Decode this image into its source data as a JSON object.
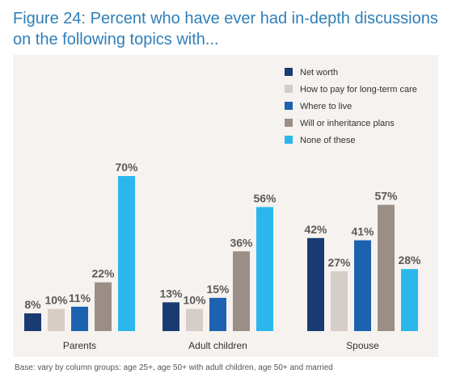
{
  "title_line1": "Figure 24: Percent who have ever had in-depth discussions",
  "title_line2": "on the following topics with...",
  "footnote": "Base: vary by column groups: age 25+, age 50+ with adult children, age 50+ and married",
  "chart_data": {
    "type": "bar",
    "categories": [
      "Parents",
      "Adult children",
      "Spouse"
    ],
    "series": [
      {
        "name": "Net worth",
        "color": "#1a3a72",
        "values": [
          8,
          13,
          42
        ]
      },
      {
        "name": "How to pay for long-term care",
        "color": "#d6cdc6",
        "values": [
          10,
          10,
          27
        ]
      },
      {
        "name": "Where to live",
        "color": "#1c62b0",
        "values": [
          11,
          15,
          41
        ]
      },
      {
        "name": "Will or inheritance plans",
        "color": "#9b8e86",
        "values": [
          22,
          36,
          57
        ]
      },
      {
        "name": "None of these",
        "color": "#2bb7ec",
        "values": [
          70,
          56,
          28
        ]
      }
    ],
    "value_suffix": "%",
    "legend": "top-right",
    "ylim": [
      0,
      70
    ],
    "grid": false
  }
}
